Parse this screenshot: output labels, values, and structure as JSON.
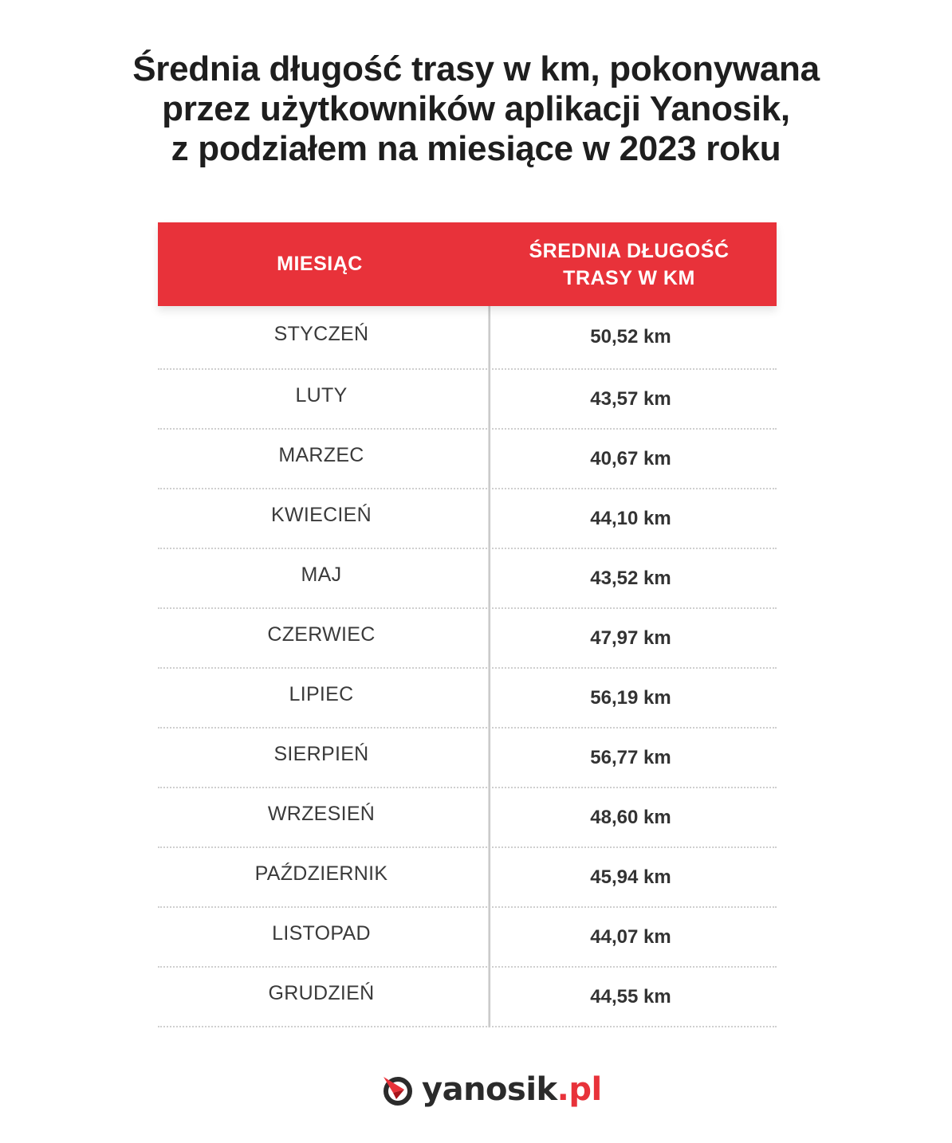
{
  "title_lines": [
    "Średnia długość trasy w km, pokonywana",
    "przez użytkowników aplikacji Yanosik,",
    "z podziałem na miesiące w 2023 roku"
  ],
  "headers": {
    "col1": "MIESIĄC",
    "col2_line1": "ŚREDNIA DŁUGOŚĆ",
    "col2_line2": "TRASY W KM"
  },
  "chart_data": {
    "type": "table",
    "title": "Średnia długość trasy w km, pokonywana przez użytkowników aplikacji Yanosik, z podziałem na miesiące w 2023 roku",
    "columns": [
      "MIESIĄC",
      "ŚREDNIA DŁUGOŚĆ TRASY W KM"
    ],
    "rows": [
      {
        "month": "STYCZEŃ",
        "value": "50,52 km"
      },
      {
        "month": "LUTY",
        "value": "43,57 km"
      },
      {
        "month": "MARZEC",
        "value": "40,67 km"
      },
      {
        "month": "KWIECIEŃ",
        "value": "44,10 km"
      },
      {
        "month": "MAJ",
        "value": "43,52 km"
      },
      {
        "month": "CZERWIEC",
        "value": "47,97 km"
      },
      {
        "month": "LIPIEC",
        "value": "56,19 km"
      },
      {
        "month": "SIERPIEŃ",
        "value": "56,77 km"
      },
      {
        "month": "WRZESIEŃ",
        "value": "48,60 km"
      },
      {
        "month": "PAŹDZIERNIK",
        "value": "45,94 km"
      },
      {
        "month": "LISTOPAD",
        "value": "44,07 km"
      },
      {
        "month": "GRUDZIEŃ",
        "value": "44,55 km"
      }
    ]
  },
  "colors": {
    "header_bg": "#e8323a",
    "accent": "#e8323a",
    "text": "#333333"
  },
  "logo": {
    "icon": "yanosik-logo-icon",
    "brand": "yanosik",
    "tld": ".pl"
  }
}
